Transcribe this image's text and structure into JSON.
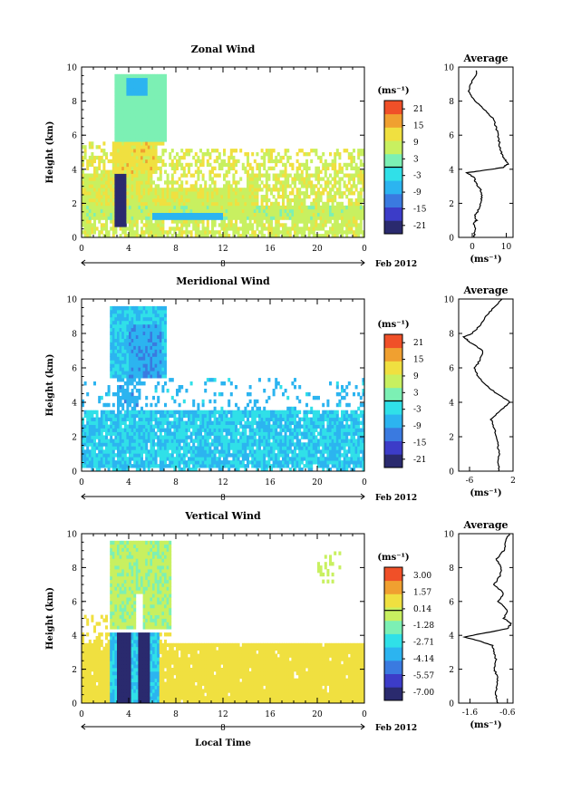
{
  "chart_data": [
    {
      "type": "heatmap",
      "title": "Zonal Wind",
      "ylabel": "Height (km)",
      "xlabel": "",
      "xlim": [
        0,
        24
      ],
      "ylim": [
        0,
        10
      ],
      "x_ticks": [
        "0",
        "4",
        "8",
        "12",
        "16",
        "20",
        "0"
      ],
      "y_ticks": [
        "0",
        "2",
        "4",
        "6",
        "8",
        "10"
      ],
      "day_label": "8",
      "date_label": "Feb 2012",
      "colorbar": {
        "unit_label": "(ms⁻¹)",
        "ticks": [
          "-21",
          "-15",
          "-9",
          "-3",
          "3",
          "9",
          "15",
          "21"
        ],
        "range": [
          -24,
          24
        ],
        "colors": [
          "#2a2a6e",
          "#3c3cc8",
          "#3a7ae0",
          "#2cb4f0",
          "#30e0e8",
          "#7cf0b4",
          "#c8f060",
          "#f0e040",
          "#f0a030",
          "#f05028"
        ]
      },
      "profile": {
        "title": "Average",
        "xlabel": "(ms⁻¹)",
        "x_ticks": [
          "0",
          "10"
        ],
        "xlim": [
          -4,
          12
        ],
        "ylim": [
          0,
          10
        ],
        "heights": [
          0,
          0.5,
          0.8,
          1.0,
          1.3,
          1.6,
          2.0,
          2.4,
          2.8,
          3.2,
          3.5,
          3.8,
          3.95,
          4.1,
          4.3,
          4.6,
          5.0,
          5.5,
          6.0,
          6.5,
          7.0,
          7.5,
          8.0,
          8.5,
          9.0,
          9.5,
          9.8
        ],
        "values": [
          0.5,
          0.8,
          0.3,
          1.2,
          0.8,
          1.8,
          2.5,
          2.8,
          2.5,
          1.0,
          0.5,
          -1.5,
          4.0,
          9.0,
          10.5,
          9.5,
          8.5,
          8.0,
          7.5,
          7.0,
          6.0,
          3.5,
          1.0,
          -1.0,
          -0.5,
          1.0,
          1.2
        ]
      }
    },
    {
      "type": "heatmap",
      "title": "Meridional Wind",
      "ylabel": "Height (km)",
      "xlabel": "",
      "xlim": [
        0,
        24
      ],
      "ylim": [
        0,
        10
      ],
      "x_ticks": [
        "0",
        "4",
        "8",
        "12",
        "16",
        "20",
        "0"
      ],
      "y_ticks": [
        "0",
        "2",
        "4",
        "6",
        "8",
        "10"
      ],
      "day_label": "8",
      "date_label": "Feb 2012",
      "colorbar": {
        "unit_label": "(ms⁻¹)",
        "ticks": [
          "-21",
          "-15",
          "-9",
          "-3",
          "3",
          "9",
          "15",
          "21"
        ],
        "range": [
          -24,
          24
        ],
        "colors": [
          "#2a2a6e",
          "#3c3cc8",
          "#3a7ae0",
          "#2cb4f0",
          "#30e0e8",
          "#7cf0b4",
          "#c8f060",
          "#f0e040",
          "#f0a030",
          "#f05028"
        ]
      },
      "profile": {
        "title": "Average",
        "xlabel": "(ms⁻¹)",
        "x_ticks": [
          "-6",
          "2"
        ],
        "xlim": [
          -8,
          2
        ],
        "ylim": [
          0,
          10
        ],
        "heights": [
          0,
          0.5,
          1.0,
          1.5,
          2.0,
          2.5,
          3.0,
          3.5,
          4.0,
          4.5,
          5.0,
          5.5,
          6.0,
          6.5,
          7.0,
          7.5,
          7.8,
          8.0,
          8.5,
          9.0,
          9.5,
          10.0
        ],
        "values": [
          -0.5,
          -0.8,
          -0.5,
          -0.8,
          -1.0,
          -1.5,
          -2.0,
          -0.5,
          1.5,
          -1.0,
          -3.0,
          -4.5,
          -5.0,
          -4.0,
          -3.5,
          -6.0,
          -7.0,
          -5.5,
          -4.0,
          -3.0,
          -1.5,
          0.0
        ]
      }
    },
    {
      "type": "heatmap",
      "title": "Vertical Wind",
      "ylabel": "Height (km)",
      "xlabel": "Local Time",
      "xlim": [
        0,
        24
      ],
      "ylim": [
        0,
        10
      ],
      "x_ticks": [
        "0",
        "4",
        "8",
        "12",
        "16",
        "20",
        "0"
      ],
      "y_ticks": [
        "0",
        "2",
        "4",
        "6",
        "8",
        "10"
      ],
      "day_label": "8",
      "date_label": "Feb 2012",
      "colorbar": {
        "unit_label": "(ms⁻¹)",
        "ticks": [
          "-7.00",
          "-5.57",
          "-4.14",
          "-2.71",
          "-1.28",
          "0.14",
          "1.57",
          "3.00"
        ],
        "range": [
          -7.7,
          3.7
        ],
        "colors": [
          "#2a2a6e",
          "#3c3cc8",
          "#3a7ae0",
          "#2cb4f0",
          "#30e0e8",
          "#7cf0b4",
          "#c8f060",
          "#f0e040",
          "#f0a030",
          "#f05028"
        ]
      },
      "profile": {
        "title": "Average",
        "xlabel": "(ms⁻¹)",
        "x_ticks": [
          "-1.6",
          "-0.6"
        ],
        "xlim": [
          -1.9,
          -0.45
        ],
        "ylim": [
          0,
          10
        ],
        "heights": [
          0,
          0.5,
          1.0,
          1.5,
          2.0,
          2.5,
          3.0,
          3.4,
          3.7,
          3.9,
          4.1,
          4.4,
          4.7,
          5.0,
          5.5,
          6.0,
          6.5,
          7.0,
          7.5,
          8.0,
          8.5,
          9.0,
          9.5,
          10.0
        ],
        "values": [
          -0.85,
          -0.9,
          -0.9,
          -0.85,
          -0.95,
          -0.9,
          -0.95,
          -1.0,
          -1.4,
          -1.75,
          -1.3,
          -0.6,
          -0.5,
          -0.7,
          -0.6,
          -0.85,
          -0.7,
          -0.95,
          -0.8,
          -0.75,
          -0.9,
          -0.7,
          -0.65,
          -0.55
        ]
      }
    }
  ]
}
